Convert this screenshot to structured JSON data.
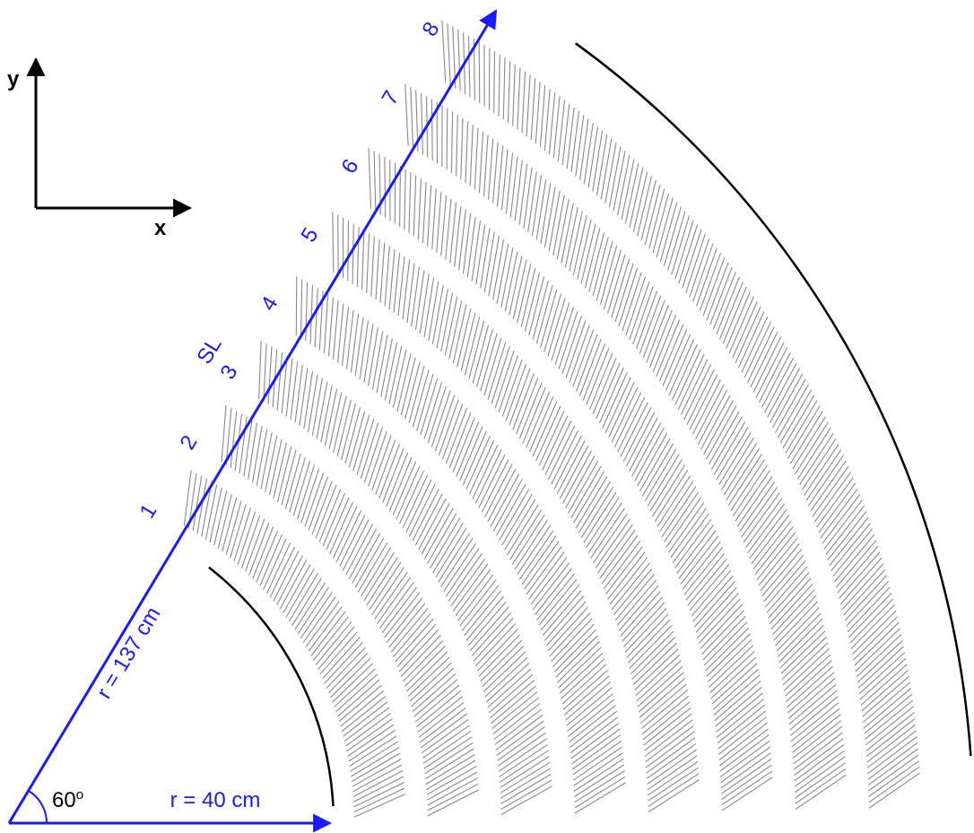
{
  "axes": {
    "y": "y",
    "x": "x"
  },
  "superlayers": {
    "title": "SL",
    "labels": [
      "1",
      "2",
      "3",
      "4",
      "5",
      "6",
      "7",
      "8"
    ]
  },
  "labels": {
    "outer_radius": "r = 137 cm",
    "angle": "60",
    "angle_unit": "o",
    "inner_radius": "r = 40 cm"
  }
}
